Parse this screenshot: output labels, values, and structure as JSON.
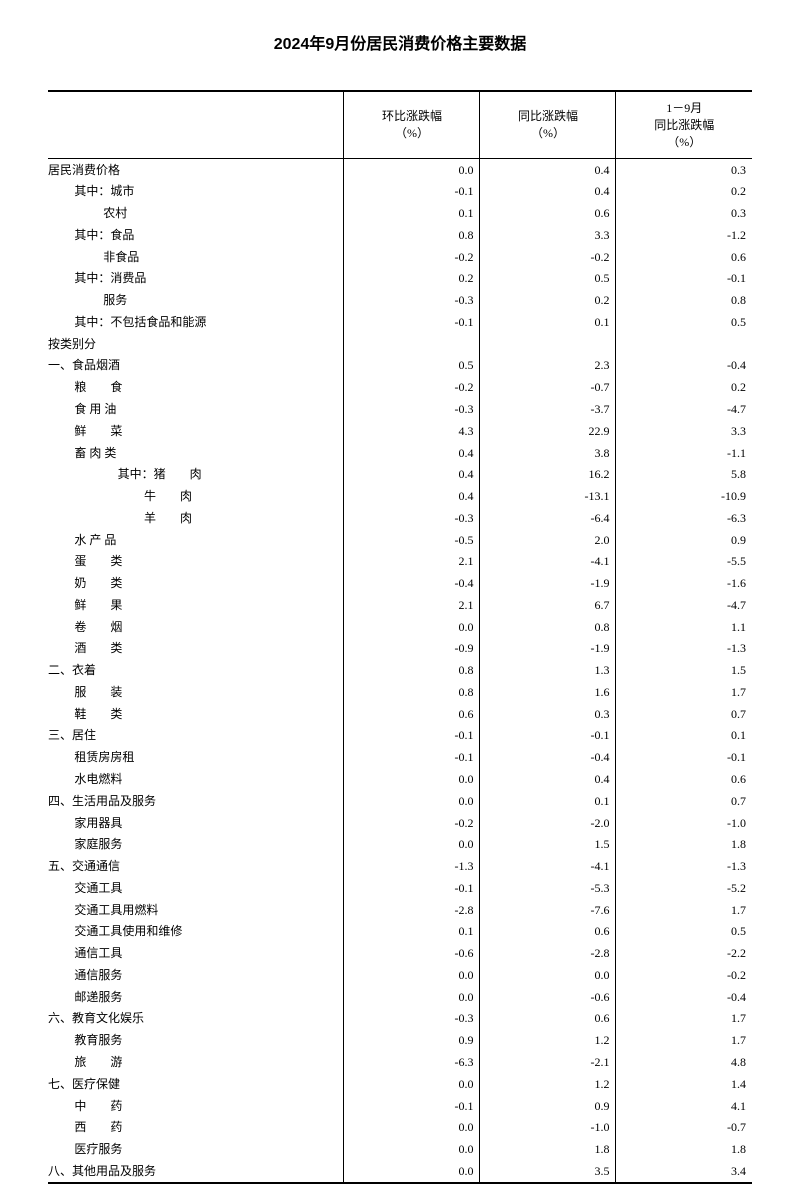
{
  "title": "2024年9月份居民消费价格主要数据",
  "columns": {
    "cat": "",
    "c1a": "环比涨跌幅",
    "c1b": "（%）",
    "c2a": "同比涨跌幅",
    "c2b": "（%）",
    "c3a": "1－9月",
    "c3b": "同比涨跌幅",
    "c3c": "（%）"
  },
  "rows": [
    {
      "label": "居民消费价格",
      "ind": 0,
      "v": [
        "0.0",
        "0.4",
        "0.3"
      ]
    },
    {
      "label": "其中：城市",
      "ind": 1,
      "v": [
        "-0.1",
        "0.4",
        "0.2"
      ]
    },
    {
      "label": "农村",
      "ind": 2,
      "v": [
        "0.1",
        "0.6",
        "0.3"
      ]
    },
    {
      "label": "其中：食品",
      "ind": 1,
      "v": [
        "0.8",
        "3.3",
        "-1.2"
      ]
    },
    {
      "label": "非食品",
      "ind": 2,
      "v": [
        "-0.2",
        "-0.2",
        "0.6"
      ]
    },
    {
      "label": "其中：消费品",
      "ind": 1,
      "v": [
        "0.2",
        "0.5",
        "-0.1"
      ]
    },
    {
      "label": "服务",
      "ind": 2,
      "v": [
        "-0.3",
        "0.2",
        "0.8"
      ]
    },
    {
      "label": "其中：不包括食品和能源",
      "ind": 1,
      "v": [
        "-0.1",
        "0.1",
        "0.5"
      ]
    },
    {
      "label": "按类别分",
      "ind": 0,
      "v": [
        "",
        "",
        ""
      ]
    },
    {
      "label": "一、食品烟酒",
      "ind": 0,
      "v": [
        "0.5",
        "2.3",
        "-0.4"
      ]
    },
    {
      "label": "粮　　食",
      "ind": 1,
      "v": [
        "-0.2",
        "-0.7",
        "0.2"
      ]
    },
    {
      "label": "食 用 油",
      "ind": 1,
      "v": [
        "-0.3",
        "-3.7",
        "-4.7"
      ]
    },
    {
      "label": "鲜　　菜",
      "ind": 1,
      "v": [
        "4.3",
        "22.9",
        "3.3"
      ]
    },
    {
      "label": "畜 肉 类",
      "ind": 1,
      "v": [
        "0.4",
        "3.8",
        "-1.1"
      ]
    },
    {
      "label": "其中：猪　　肉",
      "ind": 3,
      "v": [
        "0.4",
        "16.2",
        "5.8"
      ]
    },
    {
      "label": "牛　　肉",
      "ind": 4,
      "v": [
        "0.4",
        "-13.1",
        "-10.9"
      ]
    },
    {
      "label": "羊　　肉",
      "ind": 4,
      "v": [
        "-0.3",
        "-6.4",
        "-6.3"
      ]
    },
    {
      "label": "水 产 品",
      "ind": 1,
      "v": [
        "-0.5",
        "2.0",
        "0.9"
      ]
    },
    {
      "label": "蛋　　类",
      "ind": 1,
      "v": [
        "2.1",
        "-4.1",
        "-5.5"
      ]
    },
    {
      "label": "奶　　类",
      "ind": 1,
      "v": [
        "-0.4",
        "-1.9",
        "-1.6"
      ]
    },
    {
      "label": "鲜　　果",
      "ind": 1,
      "v": [
        "2.1",
        "6.7",
        "-4.7"
      ]
    },
    {
      "label": "卷　　烟",
      "ind": 1,
      "v": [
        "0.0",
        "0.8",
        "1.1"
      ]
    },
    {
      "label": "酒　　类",
      "ind": 1,
      "v": [
        "-0.9",
        "-1.9",
        "-1.3"
      ]
    },
    {
      "label": "二、衣着",
      "ind": 0,
      "v": [
        "0.8",
        "1.3",
        "1.5"
      ]
    },
    {
      "label": "服　　装",
      "ind": 1,
      "v": [
        "0.8",
        "1.6",
        "1.7"
      ]
    },
    {
      "label": "鞋　　类",
      "ind": 1,
      "v": [
        "0.6",
        "0.3",
        "0.7"
      ]
    },
    {
      "label": "三、居住",
      "ind": 0,
      "v": [
        "-0.1",
        "-0.1",
        "0.1"
      ]
    },
    {
      "label": "租赁房房租",
      "ind": 1,
      "v": [
        "-0.1",
        "-0.4",
        "-0.1"
      ]
    },
    {
      "label": "水电燃料",
      "ind": 1,
      "v": [
        "0.0",
        "0.4",
        "0.6"
      ]
    },
    {
      "label": "四、生活用品及服务",
      "ind": 0,
      "v": [
        "0.0",
        "0.1",
        "0.7"
      ]
    },
    {
      "label": "家用器具",
      "ind": 1,
      "v": [
        "-0.2",
        "-2.0",
        "-1.0"
      ]
    },
    {
      "label": "家庭服务",
      "ind": 1,
      "v": [
        "0.0",
        "1.5",
        "1.8"
      ]
    },
    {
      "label": "五、交通通信",
      "ind": 0,
      "v": [
        "-1.3",
        "-4.1",
        "-1.3"
      ]
    },
    {
      "label": "交通工具",
      "ind": 1,
      "v": [
        "-0.1",
        "-5.3",
        "-5.2"
      ]
    },
    {
      "label": "交通工具用燃料",
      "ind": 1,
      "v": [
        "-2.8",
        "-7.6",
        "1.7"
      ]
    },
    {
      "label": "交通工具使用和维修",
      "ind": 1,
      "v": [
        "0.1",
        "0.6",
        "0.5"
      ]
    },
    {
      "label": "通信工具",
      "ind": 1,
      "v": [
        "-0.6",
        "-2.8",
        "-2.2"
      ]
    },
    {
      "label": "通信服务",
      "ind": 1,
      "v": [
        "0.0",
        "0.0",
        "-0.2"
      ]
    },
    {
      "label": "邮递服务",
      "ind": 1,
      "v": [
        "0.0",
        "-0.6",
        "-0.4"
      ]
    },
    {
      "label": "六、教育文化娱乐",
      "ind": 0,
      "v": [
        "-0.3",
        "0.6",
        "1.7"
      ]
    },
    {
      "label": "教育服务",
      "ind": 1,
      "v": [
        "0.9",
        "1.2",
        "1.7"
      ]
    },
    {
      "label": "旅　　游",
      "ind": 1,
      "v": [
        "-6.3",
        "-2.1",
        "4.8"
      ]
    },
    {
      "label": "七、医疗保健",
      "ind": 0,
      "v": [
        "0.0",
        "1.2",
        "1.4"
      ]
    },
    {
      "label": "中　　药",
      "ind": 1,
      "v": [
        "-0.1",
        "0.9",
        "4.1"
      ]
    },
    {
      "label": "西　　药",
      "ind": 1,
      "v": [
        "0.0",
        "-1.0",
        "-0.7"
      ]
    },
    {
      "label": "医疗服务",
      "ind": 1,
      "v": [
        "0.0",
        "1.8",
        "1.8"
      ]
    },
    {
      "label": "八、其他用品及服务",
      "ind": 0,
      "v": [
        "0.0",
        "3.5",
        "3.4"
      ]
    }
  ]
}
